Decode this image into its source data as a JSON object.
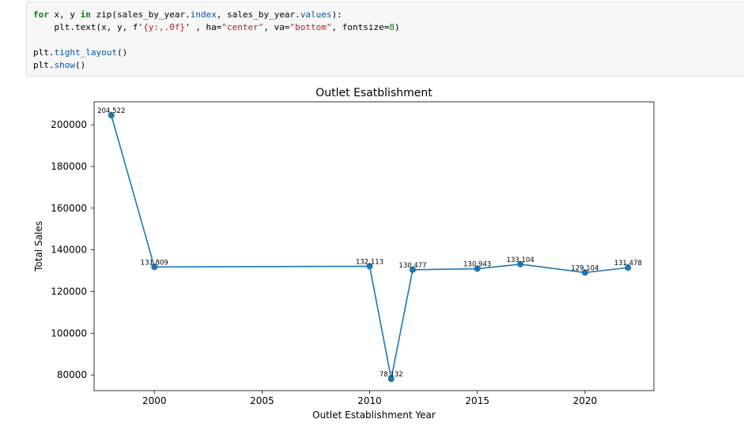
{
  "code_cell": {
    "lines": [
      [
        {
          "t": "for",
          "c": "kw"
        },
        {
          "t": " x, y ",
          "c": "fn"
        },
        {
          "t": "in",
          "c": "kw"
        },
        {
          "t": " zip(sales_by_year.",
          "c": "fn"
        },
        {
          "t": "index",
          "c": "attr"
        },
        {
          "t": ", sales_by_year.",
          "c": "fn"
        },
        {
          "t": "values",
          "c": "attr"
        },
        {
          "t": "):",
          "c": "fn"
        }
      ],
      [
        {
          "t": "    plt.text(x, y, f'",
          "c": "fn"
        },
        {
          "t": "{y:,.0f}",
          "c": "str"
        },
        {
          "t": "' , ha=",
          "c": "fn"
        },
        {
          "t": "\"center\"",
          "c": "str"
        },
        {
          "t": ", va=",
          "c": "fn"
        },
        {
          "t": "\"bottom\"",
          "c": "str"
        },
        {
          "t": ", fontsize=",
          "c": "fn"
        },
        {
          "t": "8",
          "c": "num"
        },
        {
          "t": ")",
          "c": "fn"
        }
      ],
      [],
      [
        {
          "t": "plt.",
          "c": "fn"
        },
        {
          "t": "tight_layout",
          "c": "attr"
        },
        {
          "t": "()",
          "c": "fn"
        }
      ],
      [
        {
          "t": "plt.",
          "c": "fn"
        },
        {
          "t": "show",
          "c": "attr"
        },
        {
          "t": "()",
          "c": "fn"
        }
      ]
    ]
  },
  "chart_data": {
    "type": "line",
    "title": "Outlet Esatblishment",
    "xlabel": "Outlet Establishment Year",
    "ylabel": "Total Sales",
    "x": [
      1998,
      2000,
      2010,
      2011,
      2012,
      2015,
      2017,
      2020,
      2022
    ],
    "y": [
      204522,
      131809,
      132113,
      78132,
      130477,
      130943,
      133104,
      129104,
      131478
    ],
    "point_labels": [
      "204,522",
      "131,809",
      "132,113",
      "78,132",
      "130,477",
      "130,943",
      "133,104",
      "129,104",
      "131,478"
    ],
    "xticks": [
      2000,
      2005,
      2010,
      2015,
      2020
    ],
    "yticks": [
      80000,
      100000,
      120000,
      140000,
      160000,
      180000,
      200000
    ],
    "xlim": [
      1997.2,
      2023.2
    ],
    "ylim": [
      72500,
      211000
    ],
    "grid": false,
    "line_color": "#1f77b4"
  }
}
